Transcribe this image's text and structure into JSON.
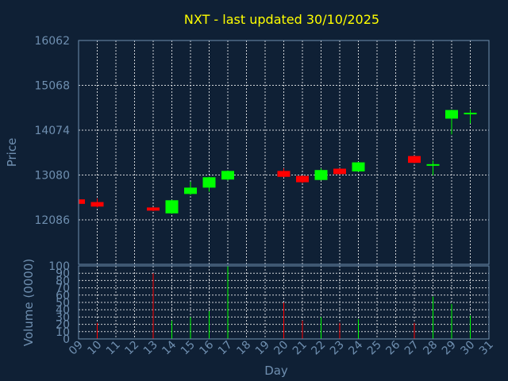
{
  "chart_data": {
    "type": "candlestick",
    "title": "NXT - last updated 30/10/2025",
    "xlabel": "Day",
    "price_panel": {
      "ylabel": "Price",
      "yticks": [
        12086,
        13080,
        14074,
        15068,
        16062
      ],
      "ylim": [
        11100,
        16062
      ],
      "grid": true
    },
    "volume_panel": {
      "ylabel": "Volume (0000)",
      "yticks": [
        0,
        10,
        20,
        30,
        40,
        50,
        60,
        70,
        80,
        90,
        100
      ],
      "ylim": [
        0,
        100
      ],
      "grid": true
    },
    "x_ticks": [
      "09",
      "10",
      "11",
      "12",
      "13",
      "14",
      "15",
      "16",
      "17",
      "18",
      "19",
      "20",
      "21",
      "22",
      "23",
      "24",
      "25",
      "26",
      "27",
      "28",
      "29",
      "30",
      "31"
    ],
    "candles": [
      {
        "day": 9,
        "open": 12540,
        "close": 12440,
        "high": 12560,
        "low": 12420,
        "volume": 0,
        "direction": "down"
      },
      {
        "day": 10,
        "open": 12480,
        "close": 12380,
        "high": 12560,
        "low": 12360,
        "volume": 22,
        "direction": "down"
      },
      {
        "day": 13,
        "open": 12360,
        "close": 12290,
        "high": 12370,
        "low": 12280,
        "volume": 90,
        "direction": "down"
      },
      {
        "day": 14,
        "open": 12230,
        "close": 12520,
        "high": 12530,
        "low": 12220,
        "volume": 25,
        "direction": "up"
      },
      {
        "day": 15,
        "open": 12660,
        "close": 12800,
        "high": 12930,
        "low": 12640,
        "volume": 30,
        "direction": "up"
      },
      {
        "day": 16,
        "open": 12800,
        "close": 13030,
        "high": 13040,
        "low": 12710,
        "volume": 38,
        "direction": "up"
      },
      {
        "day": 17,
        "open": 12980,
        "close": 13170,
        "high": 13180,
        "low": 12960,
        "volume": 100,
        "direction": "up"
      },
      {
        "day": 20,
        "open": 13170,
        "close": 13040,
        "high": 13230,
        "low": 13030,
        "volume": 50,
        "direction": "down"
      },
      {
        "day": 21,
        "open": 13060,
        "close": 12920,
        "high": 13070,
        "low": 12900,
        "volume": 25,
        "direction": "down"
      },
      {
        "day": 22,
        "open": 12970,
        "close": 13190,
        "high": 13230,
        "low": 12960,
        "volume": 30,
        "direction": "up"
      },
      {
        "day": 23,
        "open": 13220,
        "close": 13100,
        "high": 13230,
        "low": 13090,
        "volume": 22,
        "direction": "down"
      },
      {
        "day": 24,
        "open": 13160,
        "close": 13360,
        "high": 13370,
        "low": 13150,
        "volume": 27,
        "direction": "up"
      },
      {
        "day": 27,
        "open": 13500,
        "close": 13350,
        "high": 13510,
        "low": 13340,
        "volume": 22,
        "direction": "down"
      },
      {
        "day": 28,
        "open": 13310,
        "close": 13320,
        "high": 13400,
        "low": 13070,
        "volume": 58,
        "direction": "up"
      },
      {
        "day": 29,
        "open": 14330,
        "close": 14520,
        "high": 14530,
        "low": 13980,
        "volume": 48,
        "direction": "up"
      },
      {
        "day": 30,
        "open": 14450,
        "close": 14460,
        "high": 14530,
        "low": 14220,
        "volume": 32,
        "direction": "up"
      }
    ],
    "colors": {
      "background": "#0f2035",
      "up": "#00ff00",
      "down": "#ff0000",
      "axis": "#6f8fb0",
      "grid": "#ffffff",
      "title": "#ffff00"
    }
  }
}
